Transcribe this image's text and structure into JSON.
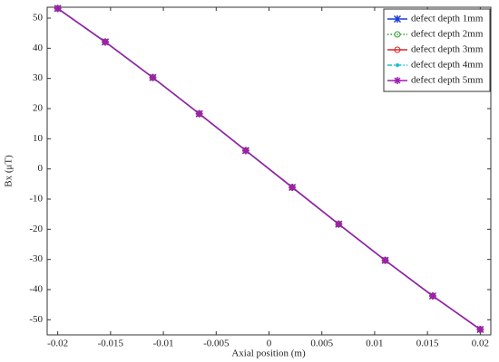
{
  "chart_data": {
    "type": "line",
    "x_label": "Axial position (m)",
    "y_label": "Bx (μT)",
    "x": [
      -0.02,
      -0.0155,
      -0.011,
      -0.0066,
      -0.0022,
      0.0022,
      0.0066,
      0.011,
      0.0155,
      0.02
    ],
    "series": [
      {
        "name": "defect depth 1mm",
        "color": "#1f3fd0",
        "marker": "x",
        "dash": "solid",
        "values": [
          53.2,
          42.1,
          30.3,
          18.3,
          6.1,
          -6.1,
          -18.3,
          -30.3,
          -42.1,
          -53.2
        ]
      },
      {
        "name": "defect depth 2mm",
        "color": "#2ca02c",
        "marker": "circle",
        "dash": "dotted",
        "values": [
          53.2,
          42.1,
          30.3,
          18.3,
          6.1,
          -6.1,
          -18.3,
          -30.3,
          -42.1,
          -53.2
        ]
      },
      {
        "name": "defect depth 3mm",
        "color": "#d62728",
        "marker": "circle",
        "dash": "solid",
        "values": [
          53.2,
          42.1,
          30.3,
          18.3,
          6.1,
          -6.1,
          -18.3,
          -30.3,
          -42.1,
          -53.2
        ]
      },
      {
        "name": "defect depth 4mm",
        "color": "#17becf",
        "marker": "dot",
        "dash": "dashdot",
        "values": [
          53.2,
          42.1,
          30.3,
          18.3,
          6.1,
          -6.1,
          -18.3,
          -30.3,
          -42.1,
          -53.2
        ]
      },
      {
        "name": "defect depth 5mm",
        "color": "#9b1fb0",
        "marker": "star",
        "dash": "solid",
        "values": [
          53.2,
          42.1,
          30.3,
          18.3,
          6.1,
          -6.1,
          -18.3,
          -30.3,
          -42.1,
          -53.2
        ]
      }
    ],
    "xlim": [
      -0.021,
      0.021
    ],
    "xticks": [
      -0.02,
      -0.015,
      -0.01,
      -0.005,
      0,
      0.005,
      0.01,
      0.015,
      0.02
    ],
    "ylim": [
      -55,
      53.6
    ],
    "yticks": [
      -50,
      -40,
      -30,
      -20,
      -10,
      0,
      10,
      20,
      30,
      40,
      50
    ],
    "grid": false,
    "legend_position": "upper-right"
  }
}
